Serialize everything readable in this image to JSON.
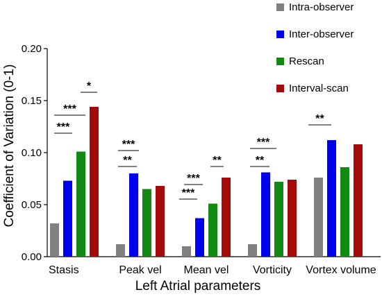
{
  "chart_data": {
    "type": "bar",
    "xlabel": "Left Atrial parameters",
    "ylabel": "Coefficient of Variation (0-1)",
    "ylim": [
      0,
      0.2
    ],
    "yticks": [
      "0.00",
      "0.05",
      "0.10",
      "0.15",
      "0.20"
    ],
    "ytick_values": [
      0,
      0.05,
      0.1,
      0.15,
      0.2
    ],
    "grid": false,
    "legend_position": "top-right",
    "categories": [
      "Stasis",
      "Peak vel",
      "Mean vel",
      "Vorticity",
      "Vortex volume"
    ],
    "series": [
      {
        "name": "Intra-observer",
        "color": "#808080",
        "values": [
          0.032,
          0.012,
          0.01,
          0.012,
          0.076
        ]
      },
      {
        "name": "Inter-observer",
        "color": "#0000ee",
        "values": [
          0.073,
          0.08,
          0.037,
          0.081,
          0.112
        ]
      },
      {
        "name": "Rescan",
        "color": "#128a12",
        "values": [
          0.101,
          0.065,
          0.051,
          0.072,
          0.086
        ]
      },
      {
        "name": "Interval-scan",
        "color": "#a30a0a",
        "values": [
          0.144,
          0.068,
          0.076,
          0.074,
          0.108
        ]
      }
    ],
    "significance": [
      {
        "category": "Stasis",
        "from": "Intra-observer",
        "to": "Inter-observer",
        "label": "***"
      },
      {
        "category": "Stasis",
        "from": "Intra-observer",
        "to": "Rescan",
        "label": "***"
      },
      {
        "category": "Stasis",
        "from": "Intra-observer",
        "to": "Interval-scan",
        "label": "*"
      },
      {
        "category": "Peak vel",
        "from": "Intra-observer",
        "to": "Inter-observer",
        "label": "**"
      },
      {
        "category": "Peak vel",
        "from": "Intra-observer",
        "to": "Inter-observer",
        "label": "***"
      },
      {
        "category": "Mean vel",
        "from": "Intra-observer",
        "to": "Intra-observer",
        "label": "***"
      },
      {
        "category": "Mean vel",
        "from": "Intra-observer",
        "to": "Inter-observer",
        "label": "***"
      },
      {
        "category": "Mean vel",
        "from": "Intra-observer",
        "to": "Interval-scan",
        "label": "**"
      },
      {
        "category": "Vorticity",
        "from": "Intra-observer",
        "to": "Inter-observer",
        "label": "**"
      },
      {
        "category": "Vorticity",
        "from": "Intra-observer",
        "to": "Inter-observer",
        "label": "***"
      },
      {
        "category": "Vortex volume",
        "from": "Intra-observer",
        "to": "Inter-observer",
        "label": "**"
      }
    ]
  }
}
